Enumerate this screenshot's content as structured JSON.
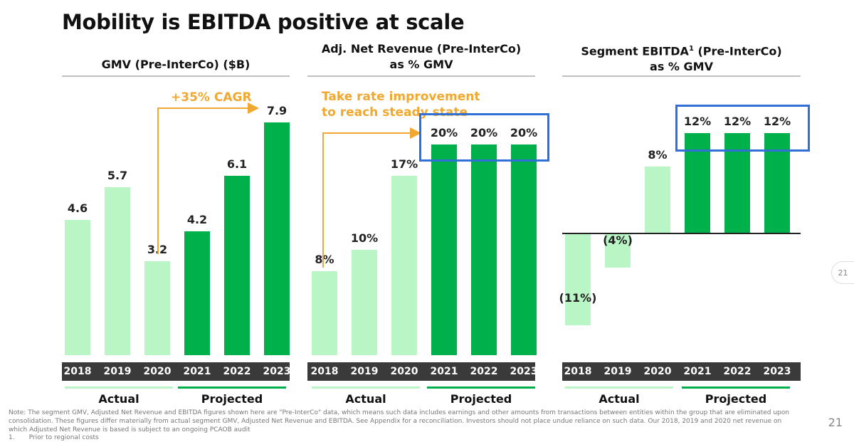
{
  "page": {
    "title": "Mobility is EBITDA positive at scale",
    "note": "Note: The segment GMV, Adjusted Net Revenue and EBITDA figures shown here are \"Pre-InterCo\" data, which means such data includes earnings and other amounts from transactions between entities within the group that are eliminated upon consolidation. These figures differ materially from actual segment GMV, Adjusted Net Revenue and EBITDA. See Appendix for a reconciliation. Investors should not place undue reliance on such data. Our 2018, 2019 and 2020 net revenue on which Adjusted Net Revenue is based is subject to an ongoing PCAOB audit",
    "footnote_num": "1.",
    "footnote_text": "Prior to regional costs",
    "page_number": "21",
    "side_tab": "21"
  },
  "colors": {
    "actual": "#b9f5c5",
    "projected": "#00b04a",
    "accent": "#f0a830",
    "highlight": "#2f6fd6"
  },
  "chart_data": [
    {
      "type": "bar",
      "title": "GMV (Pre-InterCo) ($B)",
      "categories": [
        "2018",
        "2019",
        "2020",
        "2021",
        "2022",
        "2023"
      ],
      "values": [
        4.6,
        5.7,
        3.2,
        4.2,
        6.1,
        7.9
      ],
      "labels": [
        "4.6",
        "5.7",
        "3.2",
        "4.2",
        "6.1",
        "7.9"
      ],
      "groups": [
        "Actual",
        "Projected"
      ],
      "annotation": "+35% CAGR",
      "ylim": [
        0,
        7.9
      ]
    },
    {
      "type": "bar",
      "title_line1": "Adj. Net Revenue (Pre-InterCo)",
      "title_line2": "as % GMV",
      "categories": [
        "2018",
        "2019",
        "2020",
        "2021",
        "2022",
        "2023"
      ],
      "values": [
        8,
        10,
        17,
        20,
        20,
        20
      ],
      "labels": [
        "8%",
        "10%",
        "17%",
        "20%",
        "20%",
        "20%"
      ],
      "groups": [
        "Actual",
        "Projected"
      ],
      "annotation_line1": "Take rate improvement",
      "annotation_line2": "to reach steady state",
      "ylim": [
        0,
        20
      ]
    },
    {
      "type": "bar",
      "title_line1": "Segment EBITDA",
      "title_sup": "1",
      "title_line1_rest": " (Pre-InterCo)",
      "title_line2": "as % GMV",
      "categories": [
        "2018",
        "2019",
        "2020",
        "2021",
        "2022",
        "2023"
      ],
      "values": [
        -11,
        -4,
        8,
        12,
        12,
        12
      ],
      "labels": [
        "(11%)",
        "(4%)",
        "8%",
        "12%",
        "12%",
        "12%"
      ],
      "groups": [
        "Actual",
        "Projected"
      ],
      "ylim": [
        -11,
        12
      ]
    }
  ]
}
